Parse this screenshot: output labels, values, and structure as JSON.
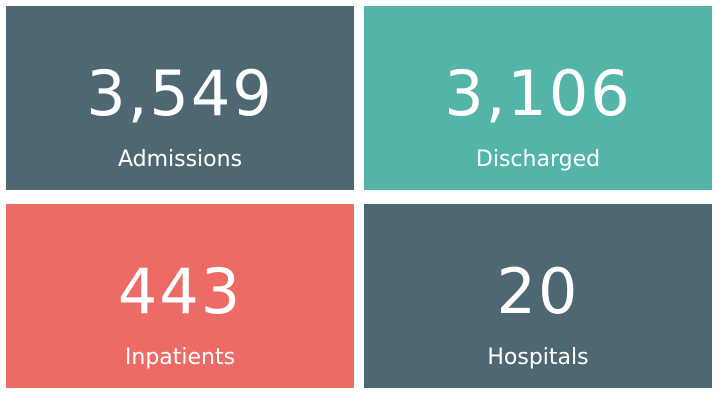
{
  "cards": [
    {
      "value": "3,549",
      "label": "Admissions",
      "color": "#4e6873"
    },
    {
      "value": "3,106",
      "label": "Discharged",
      "color": "#52b5a8"
    },
    {
      "value": "443",
      "label": "Inpatients",
      "color": "#ec6b65"
    },
    {
      "value": "20",
      "label": "Hospitals",
      "color": "#4e6873"
    }
  ]
}
